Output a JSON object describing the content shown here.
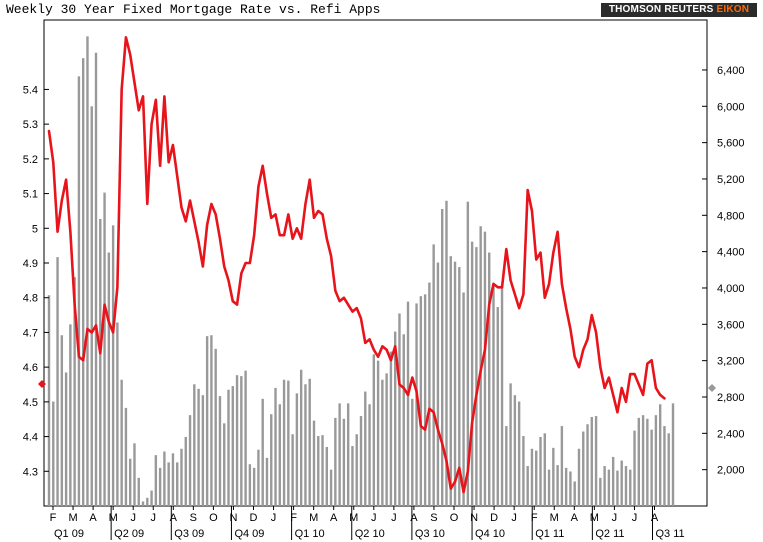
{
  "page": {
    "title": "Weekly 30 Year Fixed Mortgage Rate vs. Refi Apps",
    "brand": {
      "main": "THOMSON REUTERS",
      "accent": "EIKON"
    }
  },
  "chart_data": {
    "type": "bar+line",
    "title": "Weekly 30 Year Fixed Mortgage Rate vs. Refi Apps",
    "left_axis": {
      "ticks": [
        "4.3",
        "4.4",
        "4.5",
        "4.6",
        "4.7",
        "4.8",
        "4.9",
        "5",
        "5.1",
        "5.2",
        "5.3",
        "5.4"
      ],
      "range": [
        4.2,
        5.6
      ]
    },
    "right_axis": {
      "ticks": [
        "2,000",
        "2,400",
        "2,800",
        "3,200",
        "3,600",
        "4,000",
        "4,400",
        "4,800",
        "5,200",
        "5,600",
        "6,000",
        "6,400"
      ],
      "range": [
        1600,
        6950
      ]
    },
    "months": [
      "F",
      "M",
      "A",
      "M",
      "J",
      "J",
      "A",
      "S",
      "O",
      "N",
      "D",
      "J",
      "F",
      "M",
      "A",
      "M",
      "J",
      "J",
      "A",
      "S",
      "O",
      "N",
      "D",
      "J",
      "F",
      "M",
      "A",
      "M",
      "J",
      "J",
      "A"
    ],
    "quarters": [
      "Q1 09",
      "Q2 09",
      "Q3 09",
      "Q4 09",
      "Q1 10",
      "Q2 10",
      "Q3 10",
      "Q4 10",
      "Q1 11",
      "Q2 11",
      "Q3 11"
    ],
    "series": [
      {
        "type": "bar",
        "axis": "right",
        "color": "#999999",
        "values": [
          3920,
          2750,
          4340,
          3480,
          3070,
          3600,
          4120,
          6330,
          6530,
          6770,
          6000,
          6590,
          4760,
          5050,
          4390,
          4690,
          3620,
          2990,
          2680,
          2120,
          2290,
          1910,
          1650,
          1690,
          1770,
          2160,
          2020,
          2200,
          2080,
          2180,
          2080,
          2230,
          2360,
          2600,
          2940,
          2890,
          2820,
          3470,
          3480,
          3330,
          2810,
          2510,
          2880,
          2920,
          3040,
          3030,
          3090,
          2060,
          2020,
          2220,
          2780,
          2130,
          2610,
          2900,
          2720,
          2990,
          2980,
          2390,
          2840,
          3100,
          2940,
          3000,
          2540,
          2370,
          2380,
          2250,
          2000,
          2570,
          2730,
          2560,
          2730,
          2260,
          2390,
          2590,
          2860,
          2720,
          3270,
          3200,
          2990,
          3060,
          3300,
          3520,
          3720,
          3490,
          3850,
          2780,
          3830,
          3910,
          3930,
          4060,
          4480,
          4280,
          4870,
          4960,
          4350,
          4290,
          4230,
          3950,
          4950,
          4510,
          4450,
          4680,
          4620,
          4390,
          4030,
          3790,
          4040,
          2480,
          2950,
          2820,
          2750,
          2370,
          2040,
          2230,
          2210,
          2360,
          2400,
          2000,
          2240,
          2050,
          2480,
          2020,
          1980,
          1870,
          2230,
          2420,
          2500,
          2580,
          2590,
          1910,
          2040,
          2000,
          2140,
          1990,
          2100,
          2040,
          2000,
          2430,
          2570,
          2600,
          2560,
          2440,
          2600,
          2720,
          2480,
          2400,
          2730
        ]
      },
      {
        "type": "line",
        "axis": "left",
        "color": "#e8141b",
        "values": [
          5.28,
          5.19,
          4.99,
          5.08,
          5.14,
          4.99,
          4.78,
          4.63,
          4.62,
          4.71,
          4.7,
          4.72,
          4.64,
          4.78,
          4.73,
          4.7,
          4.83,
          5.4,
          5.55,
          5.5,
          5.42,
          5.34,
          5.38,
          5.07,
          5.3,
          5.37,
          5.18,
          5.38,
          5.19,
          5.24,
          5.15,
          5.06,
          5.02,
          5.08,
          5.02,
          4.96,
          4.89,
          5.01,
          5.07,
          5.04,
          4.97,
          4.89,
          4.85,
          4.79,
          4.78,
          4.87,
          4.9,
          4.9,
          4.98,
          5.12,
          5.18,
          5.1,
          5.03,
          5.04,
          4.98,
          4.98,
          5.04,
          4.97,
          5.0,
          4.97,
          5.07,
          5.14,
          5.03,
          5.05,
          5.04,
          4.97,
          4.92,
          4.82,
          4.79,
          4.8,
          4.78,
          4.76,
          4.77,
          4.74,
          4.67,
          4.68,
          4.65,
          4.63,
          4.66,
          4.65,
          4.62,
          4.66,
          4.55,
          4.54,
          4.52,
          4.57,
          4.53,
          4.43,
          4.42,
          4.48,
          4.47,
          4.42,
          4.38,
          4.33,
          4.25,
          4.27,
          4.31,
          4.24,
          4.3,
          4.44,
          4.52,
          4.59,
          4.65,
          4.78,
          4.84,
          4.83,
          4.83,
          4.94,
          4.85,
          4.81,
          4.77,
          4.81,
          5.11,
          5.05,
          4.91,
          4.93,
          4.8,
          4.84,
          4.93,
          4.99,
          4.84,
          4.77,
          4.71,
          4.63,
          4.6,
          4.65,
          4.68,
          4.75,
          4.7,
          4.6,
          4.54,
          4.57,
          4.52,
          4.47,
          4.54,
          4.5,
          4.58,
          4.58,
          4.55,
          4.52,
          4.61,
          4.62,
          4.54,
          4.52,
          4.51
        ]
      }
    ]
  }
}
